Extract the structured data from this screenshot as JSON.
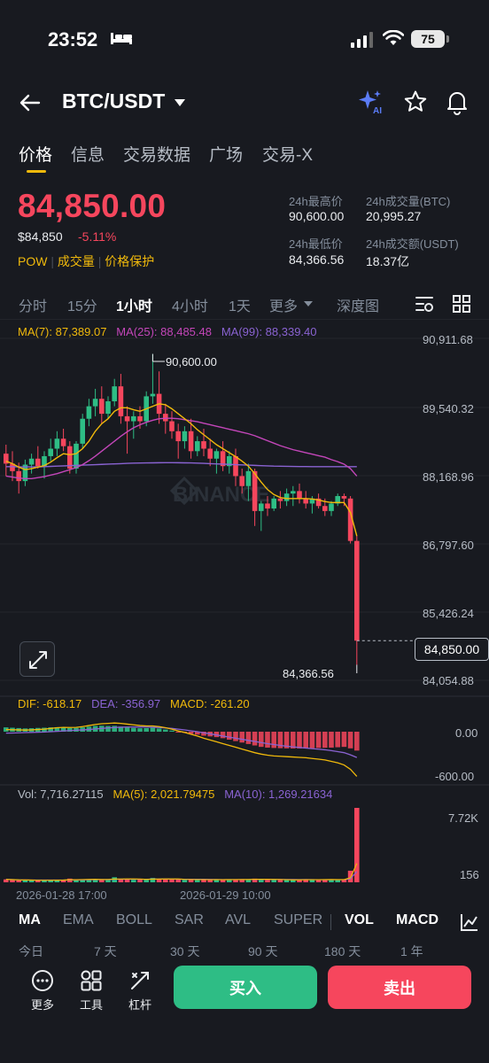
{
  "status": {
    "time": "23:52",
    "battery": "75"
  },
  "header": {
    "pair": "BTC/USDT",
    "ai_label": "AI"
  },
  "tabs": [
    "价格",
    "信息",
    "交易数据",
    "广场",
    "交易-X"
  ],
  "price": {
    "last": "84,850.00",
    "usd": "$84,850",
    "change": "-5.11%",
    "tag_pow": "POW",
    "tag_volume": "成交量",
    "tag_protect": "价格保护"
  },
  "stats": {
    "high_label": "24h最高价",
    "high": "90,600.00",
    "low_label": "24h最低价",
    "low": "84,366.56",
    "vol_btc_label": "24h成交量(BTC)",
    "vol_btc": "20,995.27",
    "vol_usdt_label": "24h成交额(USDT)",
    "vol_usdt": "18.37亿"
  },
  "intervals": [
    "分时",
    "15分",
    "1小时",
    "4小时",
    "1天",
    "更多",
    "深度图"
  ],
  "ma": {
    "ma7": "MA(7): 87,389.07",
    "ma25": "MA(25): 88,485.48",
    "ma99": "MA(99): 88,339.40"
  },
  "price_axis": [
    "90,911.68",
    "89,540.32",
    "88,168.96",
    "86,797.60",
    "85,426.24",
    "84,054.88"
  ],
  "annotations": {
    "high": "90,600.00",
    "low": "84,366.56",
    "last": "84,850.00",
    "watermark": "BINANCE"
  },
  "macd": {
    "dif": "DIF: -618.17",
    "dea": "DEA: -356.97",
    "macd": "MACD: -261.20",
    "axis_top": "0.00",
    "axis_bottom": "-600.00"
  },
  "volume": {
    "vol": "Vol: 7,716.27115",
    "ma5": "MA(5): 2,021.79475",
    "ma10": "MA(10): 1,269.21634",
    "axis_top": "7.72K",
    "axis_bottom": "156"
  },
  "time_axis": [
    "2026-01-28 17:00",
    "2026-01-29 10:00"
  ],
  "indicator_tabs": [
    "MA",
    "EMA",
    "BOLL",
    "SAR",
    "AVL",
    "SUPER",
    "VOL",
    "MACD"
  ],
  "periods": [
    "今日",
    "7 天",
    "30 天",
    "90 天",
    "180 天",
    "1 年"
  ],
  "toolbar": {
    "more": "更多",
    "tools": "工具",
    "leverage": "杠杆",
    "buy": "买入",
    "sell": "卖出"
  },
  "colors": {
    "up": "#2ebd85",
    "down": "#f6465d",
    "accent": "#f0b90b",
    "ma7": "#f0b90b",
    "ma25": "#c346b9",
    "ma99": "#8a63d2"
  },
  "chart_data": {
    "type": "candlestick",
    "interval": "1小时",
    "ylim": [
      84054.88,
      90911.68
    ],
    "candles": [
      [
        88600,
        88780,
        88150,
        88400
      ],
      [
        88400,
        88650,
        88050,
        88250
      ],
      [
        88250,
        88420,
        87800,
        88050
      ],
      [
        88050,
        88480,
        87950,
        88380
      ],
      [
        88380,
        88600,
        88200,
        88500
      ],
      [
        88500,
        88750,
        88300,
        88350
      ],
      [
        88350,
        88650,
        88100,
        88550
      ],
      [
        88550,
        88900,
        88450,
        88700
      ],
      [
        88700,
        89050,
        88550,
        88900
      ],
      [
        88900,
        89100,
        88650,
        88750
      ],
      [
        88750,
        88850,
        88200,
        88300
      ],
      [
        88300,
        88850,
        88200,
        88800
      ],
      [
        88800,
        89400,
        88700,
        89300
      ],
      [
        89300,
        89700,
        89150,
        89550
      ],
      [
        89550,
        89900,
        89350,
        89700
      ],
      [
        89700,
        89950,
        89200,
        89400
      ],
      [
        89400,
        89750,
        89300,
        89650
      ],
      [
        89650,
        90100,
        89550,
        89950
      ],
      [
        89950,
        90200,
        89200,
        89350
      ],
      [
        89350,
        89550,
        88600,
        89250
      ],
      [
        89250,
        89450,
        88900,
        89350
      ],
      [
        89350,
        89550,
        89100,
        89250
      ],
      [
        89250,
        89850,
        89150,
        89750
      ],
      [
        89750,
        90600,
        89600,
        89800
      ],
      [
        89800,
        90250,
        89200,
        89400
      ],
      [
        89400,
        89600,
        89000,
        89250
      ],
      [
        89250,
        89450,
        88900,
        89050
      ],
      [
        89050,
        89200,
        88500,
        88850
      ],
      [
        88850,
        89150,
        88700,
        89050
      ],
      [
        89050,
        89300,
        88500,
        88650
      ],
      [
        88650,
        88950,
        88550,
        88850
      ],
      [
        88850,
        89100,
        88550,
        88700
      ],
      [
        88700,
        88900,
        88350,
        88500
      ],
      [
        88500,
        88700,
        88200,
        88650
      ],
      [
        88650,
        88850,
        88250,
        88350
      ],
      [
        88350,
        88650,
        88200,
        88550
      ],
      [
        88550,
        88700,
        87950,
        88150
      ],
      [
        88150,
        88300,
        87800,
        87950
      ],
      [
        87950,
        88400,
        87650,
        88250
      ],
      [
        88250,
        88300,
        87150,
        87450
      ],
      [
        87450,
        87650,
        87050,
        87600
      ],
      [
        87600,
        87750,
        87350,
        87500
      ],
      [
        87500,
        87750,
        87450,
        87700
      ],
      [
        87700,
        87850,
        87500,
        87650
      ],
      [
        87650,
        87900,
        87550,
        87800
      ],
      [
        87800,
        87950,
        87550,
        87850
      ],
      [
        87850,
        88000,
        87600,
        87700
      ],
      [
        87700,
        87850,
        87500,
        87600
      ],
      [
        87600,
        87750,
        87400,
        87700
      ],
      [
        87700,
        87800,
        87500,
        87550
      ],
      [
        87550,
        87700,
        87350,
        87450
      ],
      [
        87450,
        87650,
        87350,
        87600
      ],
      [
        87600,
        87800,
        87550,
        87750
      ],
      [
        87750,
        87800,
        87550,
        87700
      ],
      [
        87700,
        87750,
        86800,
        86850
      ],
      [
        86850,
        86950,
        84366.56,
        84850
      ]
    ],
    "ma7_path": [
      88450,
      88400,
      88330,
      88280,
      88300,
      88330,
      88360,
      88430,
      88520,
      88600,
      88580,
      88600,
      88700,
      88850,
      89050,
      89200,
      89300,
      89450,
      89520,
      89520,
      89480,
      89450,
      89500,
      89550,
      89600,
      89580,
      89500,
      89400,
      89300,
      89200,
      89080,
      88980,
      88880,
      88780,
      88700,
      88620,
      88540,
      88450,
      88350,
      88200,
      88030,
      87880,
      87780,
      87720,
      87700,
      87700,
      87700,
      87700,
      87690,
      87670,
      87640,
      87620,
      87620,
      87620,
      87420,
      86950
    ],
    "ma25_path": [
      88150,
      88130,
      88110,
      88100,
      88100,
      88120,
      88140,
      88170,
      88200,
      88240,
      88280,
      88320,
      88380,
      88460,
      88550,
      88650,
      88750,
      88850,
      88950,
      89040,
      89120,
      89180,
      89230,
      89270,
      89300,
      89310,
      89310,
      89300,
      89280,
      89260,
      89240,
      89210,
      89180,
      89150,
      89120,
      89090,
      89060,
      89030,
      89000,
      88960,
      88910,
      88860,
      88810,
      88760,
      88720,
      88680,
      88650,
      88620,
      88590,
      88560,
      88530,
      88480,
      88440,
      88390,
      88300,
      88150
    ],
    "ma99_path": [
      88340,
      88340,
      88335,
      88335,
      88335,
      88335,
      88340,
      88345,
      88350,
      88355,
      88360,
      88365,
      88370,
      88375,
      88380,
      88385,
      88390,
      88395,
      88400,
      88405,
      88410,
      88412,
      88414,
      88416,
      88418,
      88420,
      88420,
      88418,
      88416,
      88414,
      88410,
      88405,
      88400,
      88395,
      88390,
      88385,
      88380,
      88375,
      88370,
      88365,
      88360,
      88355,
      88350,
      88348,
      88346,
      88344,
      88342,
      88341,
      88340,
      88340,
      88340,
      88340,
      88340,
      88339.4,
      88339.4,
      88339.4
    ],
    "macd_hist": [
      60,
      55,
      50,
      45,
      48,
      52,
      55,
      60,
      62,
      58,
      50,
      52,
      60,
      70,
      80,
      82,
      78,
      80,
      70,
      60,
      52,
      48,
      50,
      55,
      45,
      30,
      15,
      -5,
      -15,
      -30,
      -40,
      -55,
      -65,
      -75,
      -90,
      -110,
      -130,
      -150,
      -170,
      -190,
      -210,
      -220,
      -225,
      -228,
      -230,
      -232,
      -232,
      -230,
      -228,
      -225,
      -222,
      -220,
      -215,
      -210,
      -230,
      -261.2
    ],
    "dif_path": [
      30,
      28,
      25,
      22,
      25,
      30,
      35,
      45,
      55,
      60,
      58,
      60,
      70,
      85,
      100,
      110,
      115,
      120,
      115,
      105,
      95,
      85,
      80,
      80,
      70,
      55,
      35,
      10,
      -10,
      -35,
      -60,
      -90,
      -115,
      -140,
      -165,
      -190,
      -215,
      -240,
      -265,
      -290,
      -310,
      -325,
      -335,
      -340,
      -345,
      -350,
      -355,
      -360,
      -370,
      -380,
      -390,
      -410,
      -430,
      -460,
      -520,
      -618.17
    ],
    "dea_path": [
      -20,
      -18,
      -15,
      -12,
      -10,
      -8,
      -5,
      0,
      5,
      10,
      15,
      20,
      25,
      30,
      38,
      45,
      52,
      58,
      62,
      64,
      65,
      65,
      64,
      62,
      58,
      52,
      45,
      35,
      25,
      12,
      0,
      -15,
      -30,
      -45,
      -60,
      -75,
      -90,
      -105,
      -120,
      -135,
      -150,
      -165,
      -178,
      -190,
      -200,
      -210,
      -218,
      -226,
      -234,
      -242,
      -250,
      -262,
      -275,
      -290,
      -320,
      -356.97
    ],
    "volume": [
      300,
      250,
      200,
      220,
      180,
      210,
      260,
      200,
      230,
      240,
      380,
      260,
      300,
      320,
      280,
      260,
      300,
      520,
      340,
      300,
      260,
      280,
      320,
      450,
      360,
      300,
      280,
      320,
      260,
      300,
      240,
      280,
      260,
      300,
      280,
      260,
      300,
      280,
      320,
      380,
      300,
      260,
      240,
      280,
      260,
      240,
      260,
      300,
      280,
      260,
      280,
      300,
      260,
      280,
      1200,
      7716.27
    ]
  }
}
